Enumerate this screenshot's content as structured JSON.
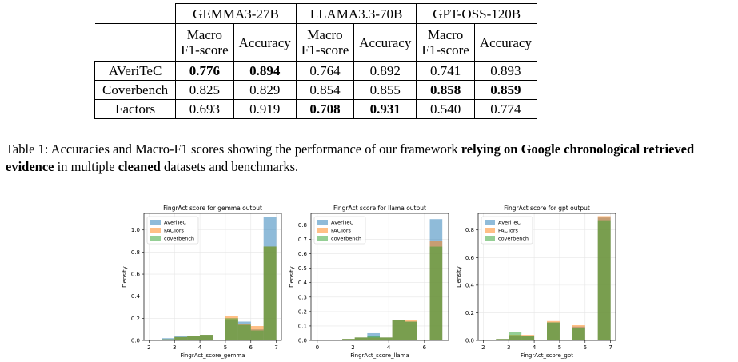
{
  "table": {
    "models": [
      "GEMMA3-27B",
      "LLAMA3.3-70B",
      "GPT-OSS-120B"
    ],
    "metric_macro": [
      "Macro",
      "F1-score"
    ],
    "metric_acc": "Accuracy",
    "rows": [
      {
        "label": "AVeriTeC",
        "cells": [
          {
            "text": "0.776",
            "bold": true
          },
          {
            "text": "0.894",
            "bold": true
          },
          {
            "text": "0.764",
            "bold": false
          },
          {
            "text": "0.892",
            "bold": false
          },
          {
            "text": "0.741",
            "bold": false
          },
          {
            "text": "0.893",
            "bold": false
          }
        ]
      },
      {
        "label": "Coverbench",
        "cells": [
          {
            "text": "0.825",
            "bold": false
          },
          {
            "text": "0.829",
            "bold": false
          },
          {
            "text": "0.854",
            "bold": false
          },
          {
            "text": "0.855",
            "bold": false
          },
          {
            "text": "0.858",
            "bold": true
          },
          {
            "text": "0.859",
            "bold": true
          }
        ]
      },
      {
        "label": "Factors",
        "cells": [
          {
            "text": "0.693",
            "bold": false
          },
          {
            "text": "0.919",
            "bold": false
          },
          {
            "text": "0.708",
            "bold": true
          },
          {
            "text": "0.931",
            "bold": true
          },
          {
            "text": "0.540",
            "bold": false
          },
          {
            "text": "0.774",
            "bold": false
          }
        ]
      }
    ]
  },
  "caption": {
    "prefix": "Table 1: Accuracies and Macro-F1 scores showing the performance of our framework ",
    "bold1": "relying on Google chronological retrieved evidence",
    "middle": " in multiple ",
    "bold2": "cleaned",
    "suffix": " datasets and benchmarks."
  },
  "colors": {
    "AVeriTeC": "#1f77b4",
    "FACTors": "#ff7f0e",
    "coverbench": "#2ca02c"
  },
  "chart_data": [
    {
      "type": "histogram",
      "title": "FingrAct score for gemma output",
      "xlabel": "FingrAct_score_gemma",
      "ylabel": "Density",
      "xlim": [
        1.8,
        7.2
      ],
      "ylim": [
        0,
        1.15
      ],
      "xticks": [
        2,
        3,
        4,
        5,
        6,
        7
      ],
      "yticks": [
        0.0,
        0.2,
        0.4,
        0.6,
        0.8,
        1.0
      ],
      "legend_position": "upper-left",
      "series": [
        {
          "name": "AVeriTeC",
          "bins": [
            [
              2.0,
              2.5,
              0.0
            ],
            [
              2.5,
              3.0,
              0.02
            ],
            [
              3.0,
              3.5,
              0.04
            ],
            [
              3.5,
              4.0,
              0.04
            ],
            [
              4.0,
              4.5,
              0.05
            ],
            [
              4.5,
              5.0,
              0.0
            ],
            [
              5.0,
              5.5,
              0.19
            ],
            [
              5.5,
              6.0,
              0.17
            ],
            [
              6.0,
              6.5,
              0.1
            ],
            [
              6.5,
              7.0,
              1.12
            ]
          ]
        },
        {
          "name": "FACTors",
          "bins": [
            [
              2.0,
              2.5,
              0.0
            ],
            [
              2.5,
              3.0,
              0.01
            ],
            [
              3.0,
              3.5,
              0.03
            ],
            [
              3.5,
              4.0,
              0.04
            ],
            [
              4.0,
              4.5,
              0.05
            ],
            [
              4.5,
              5.0,
              0.0
            ],
            [
              5.0,
              5.5,
              0.22
            ],
            [
              5.5,
              6.0,
              0.15
            ],
            [
              6.0,
              6.5,
              0.13
            ],
            [
              6.5,
              7.0,
              0.85
            ]
          ]
        },
        {
          "name": "coverbench",
          "bins": [
            [
              2.0,
              2.5,
              0.0
            ],
            [
              2.5,
              3.0,
              0.01
            ],
            [
              3.0,
              3.5,
              0.03
            ],
            [
              3.5,
              4.0,
              0.04
            ],
            [
              4.0,
              4.5,
              0.05
            ],
            [
              4.5,
              5.0,
              0.0
            ],
            [
              5.0,
              5.5,
              0.2
            ],
            [
              5.5,
              6.0,
              0.14
            ],
            [
              6.0,
              6.5,
              0.09
            ],
            [
              6.5,
              7.0,
              0.85
            ]
          ]
        }
      ]
    },
    {
      "type": "histogram",
      "title": "FingrAct score for llama output",
      "xlabel": "FingrAct_score_llama",
      "ylabel": "Density",
      "xlim": [
        -0.35,
        7.35
      ],
      "ylim": [
        0,
        0.88
      ],
      "xticks": [
        0,
        2,
        4,
        6
      ],
      "yticks": [
        0.0,
        0.1,
        0.2,
        0.3,
        0.4,
        0.5,
        0.6,
        0.7,
        0.8
      ],
      "legend_position": "upper-left",
      "series": [
        {
          "name": "AVeriTeC",
          "bins": [
            [
              0.0,
              0.7,
              0.0
            ],
            [
              0.7,
              1.4,
              0.0
            ],
            [
              1.4,
              2.1,
              0.01
            ],
            [
              2.1,
              2.8,
              0.02
            ],
            [
              2.8,
              3.5,
              0.05
            ],
            [
              3.5,
              4.2,
              0.02
            ],
            [
              4.2,
              4.9,
              0.14
            ],
            [
              4.9,
              5.6,
              0.13
            ],
            [
              5.6,
              6.3,
              0.0
            ],
            [
              6.3,
              7.0,
              0.84
            ]
          ]
        },
        {
          "name": "FACTors",
          "bins": [
            [
              0.0,
              0.7,
              0.0
            ],
            [
              0.7,
              1.4,
              0.0
            ],
            [
              1.4,
              2.1,
              0.01
            ],
            [
              2.1,
              2.8,
              0.02
            ],
            [
              2.8,
              3.5,
              0.02
            ],
            [
              3.5,
              4.2,
              0.02
            ],
            [
              4.2,
              4.9,
              0.14
            ],
            [
              4.9,
              5.6,
              0.14
            ],
            [
              5.6,
              6.3,
              0.0
            ],
            [
              6.3,
              7.0,
              0.69
            ]
          ]
        },
        {
          "name": "coverbench",
          "bins": [
            [
              0.0,
              0.7,
              0.0
            ],
            [
              0.7,
              1.4,
              0.0
            ],
            [
              1.4,
              2.1,
              0.01
            ],
            [
              2.1,
              2.8,
              0.02
            ],
            [
              2.8,
              3.5,
              0.03
            ],
            [
              3.5,
              4.2,
              0.02
            ],
            [
              4.2,
              4.9,
              0.14
            ],
            [
              4.9,
              5.6,
              0.13
            ],
            [
              5.6,
              6.3,
              0.0
            ],
            [
              6.3,
              7.0,
              0.65
            ]
          ]
        }
      ]
    },
    {
      "type": "histogram",
      "title": "FingrAct score for gpt output",
      "xlabel": "FingrAct_score_gpt",
      "ylabel": "Density",
      "xlim": [
        1.8,
        7.2
      ],
      "ylim": [
        0,
        0.92
      ],
      "xticks": [
        2,
        3,
        4,
        5,
        6,
        7
      ],
      "yticks": [
        0.0,
        0.2,
        0.4,
        0.6,
        0.8
      ],
      "legend_position": "upper-left",
      "series": [
        {
          "name": "AVeriTeC",
          "bins": [
            [
              2.0,
              2.5,
              0.0
            ],
            [
              2.5,
              3.0,
              0.01
            ],
            [
              3.0,
              3.5,
              0.03
            ],
            [
              3.5,
              4.0,
              0.03
            ],
            [
              4.0,
              4.5,
              0.0
            ],
            [
              4.5,
              5.0,
              0.13
            ],
            [
              5.0,
              5.5,
              0.0
            ],
            [
              5.5,
              6.0,
              0.1
            ],
            [
              6.0,
              6.5,
              0.0
            ],
            [
              6.5,
              7.0,
              0.89
            ]
          ]
        },
        {
          "name": "FACTors",
          "bins": [
            [
              2.0,
              2.5,
              0.0
            ],
            [
              2.5,
              3.0,
              0.01
            ],
            [
              3.0,
              3.5,
              0.04
            ],
            [
              3.5,
              4.0,
              0.04
            ],
            [
              4.0,
              4.5,
              0.0
            ],
            [
              4.5,
              5.0,
              0.14
            ],
            [
              5.0,
              5.5,
              0.0
            ],
            [
              5.5,
              6.0,
              0.11
            ],
            [
              6.0,
              6.5,
              0.0
            ],
            [
              6.5,
              7.0,
              0.9
            ]
          ]
        },
        {
          "name": "coverbench",
          "bins": [
            [
              2.0,
              2.5,
              0.0
            ],
            [
              2.5,
              3.0,
              0.01
            ],
            [
              3.0,
              3.5,
              0.06
            ],
            [
              3.5,
              4.0,
              0.03
            ],
            [
              4.0,
              4.5,
              0.0
            ],
            [
              4.5,
              5.0,
              0.13
            ],
            [
              5.0,
              5.5,
              0.0
            ],
            [
              5.5,
              6.0,
              0.09
            ],
            [
              6.0,
              6.5,
              0.0
            ],
            [
              6.5,
              7.0,
              0.87
            ]
          ]
        }
      ]
    }
  ]
}
